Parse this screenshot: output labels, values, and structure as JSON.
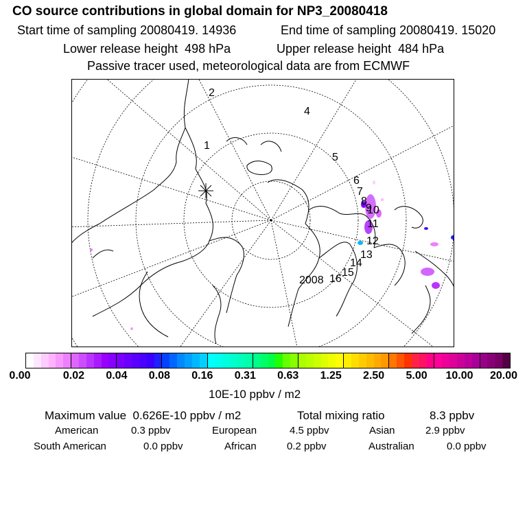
{
  "title": "CO  source contributions in global domain for NP3_20080418",
  "header": {
    "start_label": "Start time of sampling",
    "start_value": "20080419. 14936",
    "end_label": "End time of sampling",
    "end_value": "20080419. 15020",
    "lower_label": "Lower release height",
    "lower_value": "498 hPa",
    "upper_label": "Upper release height",
    "upper_value": "484 hPa",
    "note": "Passive tracer used, meteorological data are from ECMWF"
  },
  "map": {
    "projection": "north polar stereographic",
    "trajectory_labels": [
      "1",
      "2",
      "4",
      "5",
      "6",
      "7",
      "8",
      "9",
      "10",
      "11",
      "12",
      "13",
      "14",
      "15",
      "16",
      "2008"
    ],
    "release_marker_icon": "star-burst-icon"
  },
  "colorbar": {
    "unit": "10E-10 ppbv / m2",
    "tick_labels": [
      "0.00",
      "0.02",
      "0.04",
      "0.08",
      "0.16",
      "0.31",
      "0.63",
      "1.25",
      "2.50",
      "5.00",
      "10.00",
      "20.00"
    ],
    "colors": [
      "#ffffff",
      "#ffe6ff",
      "#ffccff",
      "#ffb3ff",
      "#f799ff",
      "#ec80ff",
      "#dd66ff",
      "#cc4dff",
      "#bb33ff",
      "#aa1aff",
      "#9900ff",
      "#8800ff",
      "#7a00ff",
      "#6a00ff",
      "#5a00ff",
      "#4a00ff",
      "#3a00ff",
      "#2020ff",
      "#0044ff",
      "#0066ff",
      "#0088ff",
      "#00a0ff",
      "#00b8ff",
      "#00d0ff",
      "#00ffff",
      "#00ffee",
      "#00ffdd",
      "#00ffcc",
      "#00ffbb",
      "#00ffaa",
      "#00ff88",
      "#00ff66",
      "#00ff44",
      "#22ff00",
      "#66ff00",
      "#88ff00",
      "#aaff00",
      "#bbff00",
      "#ccff00",
      "#ddff00",
      "#eeff00",
      "#ffff00",
      "#ffee00",
      "#ffdd00",
      "#ffcc00",
      "#ffbb00",
      "#ffaa00",
      "#ff9900",
      "#ff7700",
      "#ff5500",
      "#ff3300",
      "#ff2244",
      "#ff1166",
      "#ff0088",
      "#ff0099",
      "#ee0099",
      "#dd0099",
      "#cc0099",
      "#bb0099",
      "#aa0099",
      "#990088",
      "#880077",
      "#770066",
      "#550044"
    ]
  },
  "stats": {
    "max_label": "Maximum value",
    "max_value": "0.626E-10 ppbv / m2",
    "total_label": "Total mixing ratio",
    "total_value": "8.3 ppbv",
    "regions": [
      {
        "name": "American",
        "value": "0.3 ppbv"
      },
      {
        "name": "European",
        "value": "4.5 ppbv"
      },
      {
        "name": "Asian",
        "value": "2.9 ppbv"
      },
      {
        "name": "South American",
        "value": "0.0 ppbv"
      },
      {
        "name": "African",
        "value": "0.2 ppbv"
      },
      {
        "name": "Australian",
        "value": "0.0 ppbv"
      }
    ]
  }
}
